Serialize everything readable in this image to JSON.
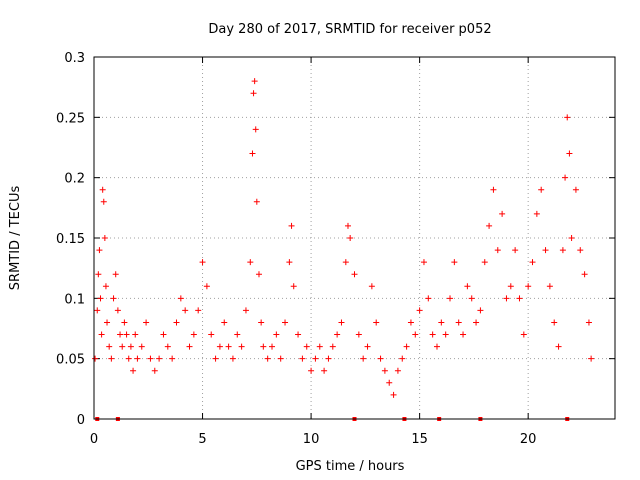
{
  "chart_data": {
    "type": "scatter",
    "title": "Day 280 of 2017, SRMTID for receiver p052",
    "xlabel": "GPS time / hours",
    "ylabel": "SRMTID / TECUs",
    "xlim": [
      0,
      24
    ],
    "ylim": [
      0,
      0.3
    ],
    "x_ticks": [
      0,
      5,
      10,
      15,
      20
    ],
    "x_tick_labels": [
      "0",
      "5",
      "10",
      "15",
      "20"
    ],
    "y_ticks": [
      0,
      0.05,
      0.1,
      0.15,
      0.2,
      0.25,
      0.3
    ],
    "y_tick_labels": [
      "0",
      "0.05",
      "0.1",
      "0.15",
      "0.2",
      "0.25",
      "0.3"
    ],
    "grid": true,
    "marker": "plus",
    "color": "#ff0000",
    "series": [
      {
        "name": "SRMTID",
        "points": [
          [
            0.05,
            0.05
          ],
          [
            0.15,
            0.09
          ],
          [
            0.2,
            0.12
          ],
          [
            0.25,
            0.14
          ],
          [
            0.3,
            0.1
          ],
          [
            0.35,
            0.07
          ],
          [
            0.4,
            0.19
          ],
          [
            0.45,
            0.18
          ],
          [
            0.5,
            0.15
          ],
          [
            0.55,
            0.11
          ],
          [
            0.6,
            0.08
          ],
          [
            0.7,
            0.06
          ],
          [
            0.8,
            0.05
          ],
          [
            0.9,
            0.1
          ],
          [
            1.0,
            0.12
          ],
          [
            1.1,
            0.09
          ],
          [
            1.2,
            0.07
          ],
          [
            1.3,
            0.06
          ],
          [
            1.4,
            0.08
          ],
          [
            1.5,
            0.07
          ],
          [
            1.6,
            0.05
          ],
          [
            1.7,
            0.06
          ],
          [
            1.8,
            0.04
          ],
          [
            1.9,
            0.07
          ],
          [
            2.0,
            0.05
          ],
          [
            2.2,
            0.06
          ],
          [
            2.4,
            0.08
          ],
          [
            2.6,
            0.05
          ],
          [
            2.8,
            0.04
          ],
          [
            3.0,
            0.05
          ],
          [
            3.2,
            0.07
          ],
          [
            3.4,
            0.06
          ],
          [
            3.6,
            0.05
          ],
          [
            3.8,
            0.08
          ],
          [
            4.0,
            0.1
          ],
          [
            4.2,
            0.09
          ],
          [
            4.4,
            0.06
          ],
          [
            4.6,
            0.07
          ],
          [
            4.8,
            0.09
          ],
          [
            5.0,
            0.13
          ],
          [
            5.2,
            0.11
          ],
          [
            5.4,
            0.07
          ],
          [
            5.6,
            0.05
          ],
          [
            5.8,
            0.06
          ],
          [
            6.0,
            0.08
          ],
          [
            6.2,
            0.06
          ],
          [
            6.4,
            0.05
          ],
          [
            6.6,
            0.07
          ],
          [
            6.8,
            0.06
          ],
          [
            7.0,
            0.09
          ],
          [
            7.2,
            0.13
          ],
          [
            7.3,
            0.22
          ],
          [
            7.35,
            0.27
          ],
          [
            7.4,
            0.28
          ],
          [
            7.45,
            0.24
          ],
          [
            7.5,
            0.18
          ],
          [
            7.6,
            0.12
          ],
          [
            7.7,
            0.08
          ],
          [
            7.8,
            0.06
          ],
          [
            8.0,
            0.05
          ],
          [
            8.2,
            0.06
          ],
          [
            8.4,
            0.07
          ],
          [
            8.6,
            0.05
          ],
          [
            8.8,
            0.08
          ],
          [
            9.0,
            0.13
          ],
          [
            9.1,
            0.16
          ],
          [
            9.2,
            0.11
          ],
          [
            9.4,
            0.07
          ],
          [
            9.6,
            0.05
          ],
          [
            9.8,
            0.06
          ],
          [
            10.0,
            0.04
          ],
          [
            10.2,
            0.05
          ],
          [
            10.4,
            0.06
          ],
          [
            10.6,
            0.04
          ],
          [
            10.8,
            0.05
          ],
          [
            11.0,
            0.06
          ],
          [
            11.2,
            0.07
          ],
          [
            11.4,
            0.08
          ],
          [
            11.6,
            0.13
          ],
          [
            11.7,
            0.16
          ],
          [
            11.8,
            0.15
          ],
          [
            12.0,
            0.12
          ],
          [
            12.2,
            0.07
          ],
          [
            12.4,
            0.05
          ],
          [
            12.6,
            0.06
          ],
          [
            12.8,
            0.11
          ],
          [
            13.0,
            0.08
          ],
          [
            13.2,
            0.05
          ],
          [
            13.4,
            0.04
          ],
          [
            13.6,
            0.03
          ],
          [
            13.8,
            0.02
          ],
          [
            14.0,
            0.04
          ],
          [
            14.2,
            0.05
          ],
          [
            14.4,
            0.06
          ],
          [
            14.6,
            0.08
          ],
          [
            14.8,
            0.07
          ],
          [
            15.0,
            0.09
          ],
          [
            15.2,
            0.13
          ],
          [
            15.4,
            0.1
          ],
          [
            15.6,
            0.07
          ],
          [
            15.8,
            0.06
          ],
          [
            16.0,
            0.08
          ],
          [
            16.2,
            0.07
          ],
          [
            16.4,
            0.1
          ],
          [
            16.6,
            0.13
          ],
          [
            16.8,
            0.08
          ],
          [
            17.0,
            0.07
          ],
          [
            17.2,
            0.11
          ],
          [
            17.4,
            0.1
          ],
          [
            17.6,
            0.08
          ],
          [
            17.8,
            0.09
          ],
          [
            18.0,
            0.13
          ],
          [
            18.2,
            0.16
          ],
          [
            18.4,
            0.19
          ],
          [
            18.6,
            0.14
          ],
          [
            18.8,
            0.17
          ],
          [
            19.0,
            0.1
          ],
          [
            19.2,
            0.11
          ],
          [
            19.4,
            0.14
          ],
          [
            19.6,
            0.1
          ],
          [
            19.8,
            0.07
          ],
          [
            20.0,
            0.11
          ],
          [
            20.2,
            0.13
          ],
          [
            20.4,
            0.17
          ],
          [
            20.6,
            0.19
          ],
          [
            20.8,
            0.14
          ],
          [
            21.0,
            0.11
          ],
          [
            21.2,
            0.08
          ],
          [
            21.4,
            0.06
          ],
          [
            21.6,
            0.14
          ],
          [
            21.7,
            0.2
          ],
          [
            21.8,
            0.25
          ],
          [
            21.9,
            0.22
          ],
          [
            22.0,
            0.15
          ],
          [
            22.2,
            0.19
          ],
          [
            22.4,
            0.14
          ],
          [
            22.6,
            0.12
          ],
          [
            22.8,
            0.08
          ],
          [
            22.9,
            0.05
          ]
        ]
      }
    ],
    "baseline_markers_x": [
      0.15,
      1.1,
      12.0,
      14.3,
      15.9,
      17.8,
      21.8
    ]
  }
}
